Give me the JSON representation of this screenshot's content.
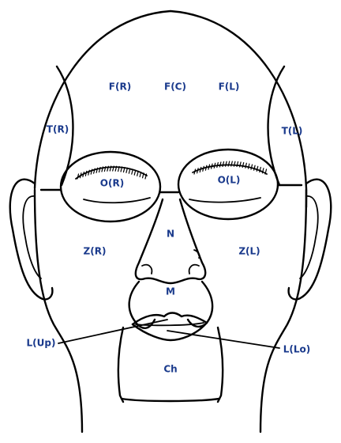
{
  "label_color": "#1a3a8c",
  "regions": {
    "forehead_right": "F(R)",
    "forehead_center": "F(C)",
    "forehead_left": "F(L)",
    "temple_right": "T(R)",
    "temple_left": "T(L)",
    "orbit_right": "O(R)",
    "orbit_left": "O(L)",
    "nose": "N",
    "zygoma_right": "Z(R)",
    "zygoma_left": "Z(L)",
    "mouth": "M",
    "lip_upper": "L(Up)",
    "lip_lower": "L(Lo)",
    "chin": "Ch"
  }
}
